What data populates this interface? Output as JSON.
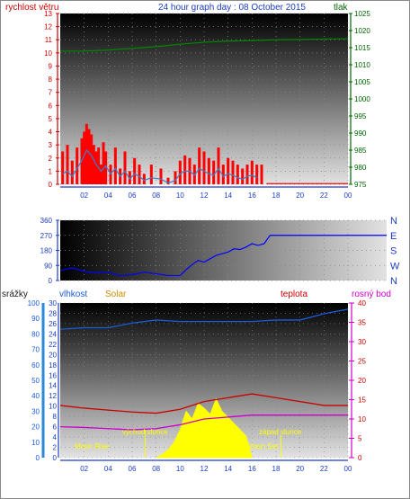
{
  "chart_data": [
    {
      "id": "wind",
      "type": "bar",
      "title": "24 hour graph day : 08 October 2015",
      "ylabel": "rychlost větru",
      "y2label": "tlak",
      "ylim": [
        0,
        13
      ],
      "y2lim": [
        975,
        1025
      ],
      "yticks": [
        "0",
        "1",
        "2",
        "3",
        "4",
        "5",
        "6",
        "7",
        "8",
        "9",
        "10",
        "11",
        "12",
        "13"
      ],
      "y2ticks": [
        "975",
        "980",
        "985",
        "990",
        "995",
        "1000",
        "1005",
        "1010",
        "1015",
        "1020",
        "1025"
      ],
      "xticks": [
        "02",
        "04",
        "06",
        "08",
        "10",
        "12",
        "14",
        "16",
        "18",
        "20",
        "22",
        "00"
      ],
      "grid": true,
      "series": [
        {
          "name": "gust",
          "color": "#ff0000",
          "x": [
            0.2,
            0.6,
            1.0,
            1.4,
            1.8,
            2.0,
            2.2,
            2.4,
            2.6,
            2.8,
            3.0,
            3.2,
            3.4,
            3.6,
            3.8,
            4.2,
            4.6,
            5.0,
            5.4,
            5.8,
            6.2,
            6.6,
            7.0,
            7.6,
            8.4,
            9.0,
            9.6,
            10.0,
            10.4,
            10.8,
            11.2,
            11.6,
            12.0,
            12.4,
            12.8,
            13.2,
            13.6,
            14.0,
            14.4,
            14.8,
            15.2,
            15.6,
            16.0,
            16.4,
            16.8,
            17.2,
            24.0
          ],
          "values": [
            2.5,
            3.0,
            1.8,
            2.8,
            3.5,
            4.0,
            4.6,
            4.2,
            3.8,
            3.0,
            2.5,
            2.8,
            1.5,
            3.2,
            2.5,
            1.5,
            2.8,
            1.2,
            2.5,
            1.0,
            2.0,
            1.5,
            0.8,
            1.5,
            1.2,
            0.5,
            1.0,
            1.8,
            2.2,
            2.0,
            1.5,
            2.8,
            2.5,
            2.0,
            1.8,
            2.8,
            1.5,
            2.0,
            1.8,
            1.5,
            1.2,
            1.5,
            1.8,
            1.5,
            1.5,
            0,
            0
          ]
        },
        {
          "name": "avg",
          "color": "#3a7fc8",
          "x": [
            0.2,
            0.6,
            1.0,
            1.4,
            1.8,
            2.2,
            2.6,
            3.0,
            3.4,
            3.8,
            4.2,
            4.6,
            5.0,
            5.4,
            5.8,
            6.2,
            6.6,
            7.0,
            7.6,
            8.4,
            9.0,
            9.6,
            10.0,
            10.4,
            10.8,
            11.2,
            11.6,
            12.0,
            12.4,
            12.8,
            13.2,
            13.6,
            14.0,
            14.4,
            14.8,
            15.2,
            15.6,
            16.0,
            16.4
          ],
          "values": [
            0.8,
            1.0,
            0.6,
            1.2,
            1.8,
            2.6,
            2.2,
            1.5,
            1.0,
            1.4,
            0.8,
            1.2,
            0.6,
            1.0,
            0.4,
            0.8,
            0.6,
            0.3,
            0.5,
            0.4,
            0.1,
            0.3,
            0.8,
            1.0,
            1.0,
            0.7,
            1.2,
            1.0,
            0.8,
            0.7,
            1.2,
            0.6,
            0.8,
            0.7,
            0.5,
            0.4,
            0.6,
            0.7,
            0.5
          ]
        },
        {
          "name": "tlak",
          "color": "#008800",
          "x": [
            0,
            2,
            4,
            6,
            8,
            10,
            12,
            14,
            16,
            18,
            20,
            22,
            24
          ],
          "values": [
            1014,
            1014,
            1014.3,
            1014.8,
            1015.3,
            1016,
            1016.6,
            1016.9,
            1017.1,
            1017.3,
            1017.4,
            1017.5,
            1017.6
          ]
        }
      ]
    },
    {
      "id": "direction",
      "type": "line",
      "ylim": [
        0,
        360
      ],
      "yticks": [
        "0",
        "90",
        "180",
        "270",
        "360"
      ],
      "y2ticks": [
        "N",
        "E",
        "S",
        "W",
        "N"
      ],
      "grid": true,
      "series": [
        {
          "name": "direction",
          "color": "#0000ff",
          "x": [
            0,
            1,
            2,
            3,
            4,
            5,
            6,
            7,
            8,
            9,
            10,
            10.5,
            11,
            11.5,
            12,
            12.5,
            13,
            13.5,
            14,
            14.5,
            15,
            15.5,
            16,
            16.5,
            17,
            17.5,
            18,
            19,
            20,
            21,
            22,
            23,
            24
          ],
          "values": [
            60,
            75,
            55,
            45,
            50,
            30,
            35,
            50,
            40,
            30,
            30,
            65,
            95,
            120,
            110,
            130,
            150,
            160,
            170,
            190,
            185,
            200,
            220,
            210,
            220,
            270,
            270,
            270,
            270,
            270,
            270,
            270,
            270
          ]
        }
      ]
    },
    {
      "id": "climate",
      "type": "line",
      "labels": {
        "rain": "srážky",
        "humidity": "vlhkost",
        "solar": "Solar",
        "temp": "teplota",
        "dew": "rosný bod"
      },
      "rain_ticks": [
        "0",
        "10",
        "20",
        "30",
        "40",
        "50",
        "60",
        "70",
        "80",
        "90",
        "100"
      ],
      "hum_ticks": [
        "0",
        "2",
        "4",
        "6",
        "8",
        "10",
        "12",
        "14",
        "16",
        "18",
        "20",
        "22",
        "24",
        "26",
        "28",
        "30"
      ],
      "temp_ticks": [
        "0",
        "5",
        "10",
        "15",
        "20",
        "25",
        "30",
        "35",
        "40"
      ],
      "temp_lim": [
        0,
        40
      ],
      "hum_lim": [
        0,
        30
      ],
      "grid": true,
      "annotations": [
        "Moon Rise",
        "východ slunce",
        "západ slunce",
        "Moon Set"
      ],
      "series": [
        {
          "name": "vlhkost",
          "color": "#1a5cd8",
          "x": [
            0,
            2,
            4,
            6,
            8,
            10,
            12,
            14,
            16,
            18,
            20,
            22,
            24
          ],
          "values": [
            83,
            84,
            84,
            87,
            89,
            88,
            88,
            88,
            88,
            89,
            89,
            93,
            96
          ]
        },
        {
          "name": "teplota",
          "color": "#c80000",
          "x": [
            0,
            2,
            4,
            6,
            8,
            10,
            12,
            14,
            16,
            18,
            20,
            22,
            24
          ],
          "values": [
            13.5,
            12.8,
            12.3,
            11.8,
            11.5,
            12.5,
            14.5,
            15.5,
            16.5,
            15.5,
            14.5,
            13.5,
            13.5
          ]
        },
        {
          "name": "rosný bod",
          "color": "#cc00cc",
          "x": [
            0,
            2,
            4,
            6,
            8,
            10,
            12,
            14,
            16,
            18,
            20,
            22,
            24
          ],
          "values": [
            8.0,
            7.8,
            7.5,
            7.2,
            7.5,
            8.5,
            10.0,
            10.5,
            11.0,
            11.0,
            11.0,
            11.0,
            11.0
          ]
        },
        {
          "name": "Solar",
          "color": "#ffff00",
          "x": [
            8,
            8.5,
            9,
            9.5,
            10,
            10.5,
            11,
            11.5,
            12,
            12.5,
            13,
            13.5,
            14,
            14.5,
            15,
            15.5,
            16
          ],
          "values": [
            0,
            2,
            5,
            10,
            18,
            30,
            25,
            35,
            32,
            28,
            38,
            30,
            26,
            22,
            18,
            14,
            0
          ]
        }
      ]
    }
  ]
}
